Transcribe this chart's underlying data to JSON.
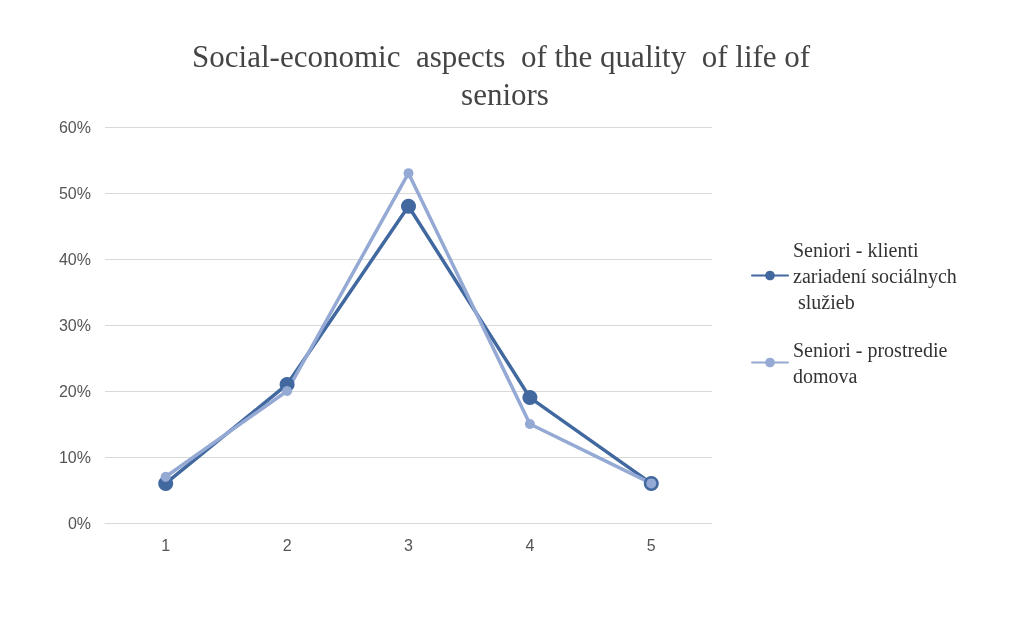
{
  "chart_data": {
    "type": "line",
    "title": "Social-economic  aspects  of the quality  of life of seniors",
    "categories": [
      "1",
      "2",
      "3",
      "4",
      "5"
    ],
    "series": [
      {
        "name": "Seniori - klienti zariadení sociálnych služieb",
        "color": "#41689f",
        "values": [
          6,
          21,
          48,
          19,
          6
        ]
      },
      {
        "name": "Seniori - prostredie domova",
        "color": "#94a9d3",
        "values": [
          7,
          20,
          53,
          15,
          6
        ]
      }
    ],
    "ylim": [
      0,
      60
    ],
    "yticks": [
      {
        "value": 0,
        "label": "0%"
      },
      {
        "value": 10,
        "label": "10%"
      },
      {
        "value": 20,
        "label": "20%"
      },
      {
        "value": 30,
        "label": "30%"
      },
      {
        "value": 40,
        "label": "40%"
      },
      {
        "value": 50,
        "label": "50%"
      },
      {
        "value": 60,
        "label": "60%"
      }
    ],
    "grid": "y",
    "legend": "right",
    "marker": "circle",
    "line_style": "solid"
  }
}
